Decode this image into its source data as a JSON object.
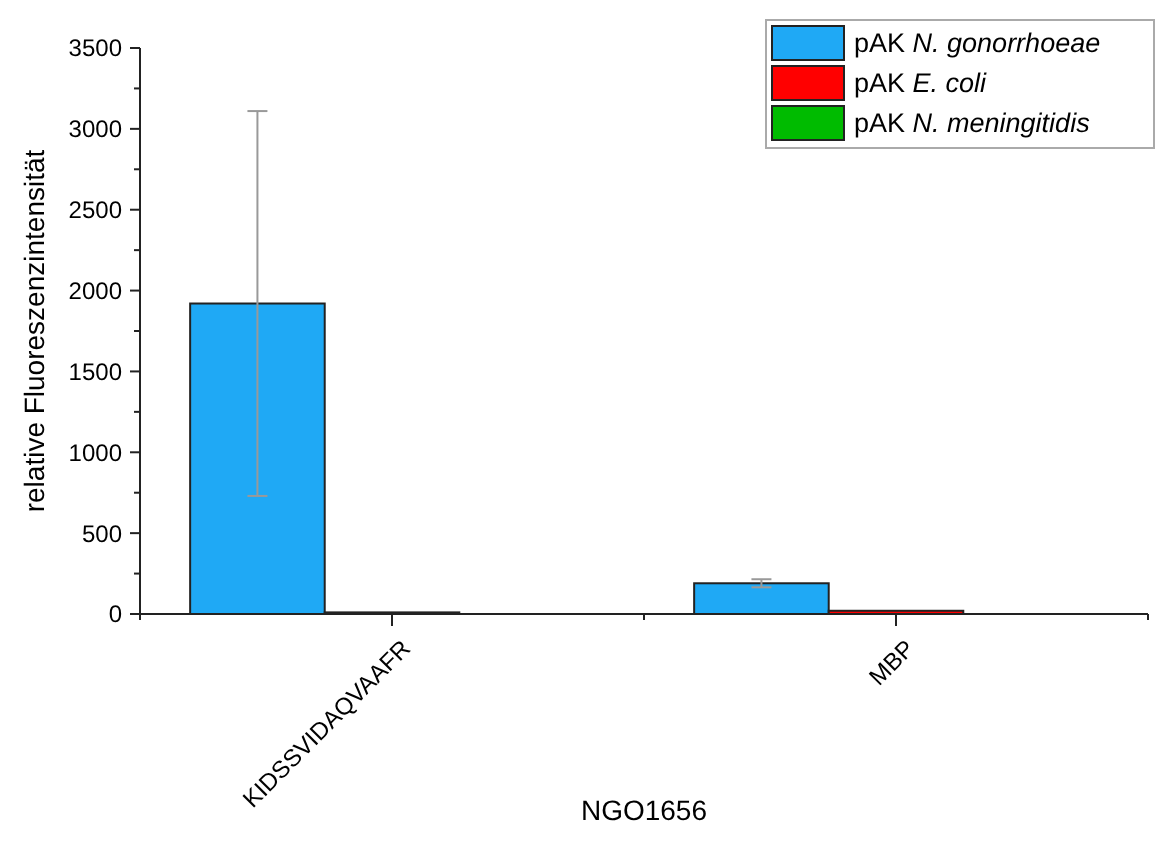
{
  "chart_data": {
    "type": "bar",
    "xlabel": "NGO1656",
    "ylabel": "relative Fluoreszenzintensität",
    "categories": [
      "KIDSSVIDAQVAAFR",
      "MBP"
    ],
    "series": [
      {
        "name": "pAK N. gonorrhoeae",
        "color": "#1fa9f5",
        "values": [
          1920,
          190
        ],
        "errors": [
          1190,
          25
        ]
      },
      {
        "name": "pAK E. coli",
        "color": "#ff0000",
        "values": [
          10,
          20
        ]
      },
      {
        "name": "pAK N. meningitidis",
        "color": "#00bb00",
        "values": [
          0,
          0
        ]
      }
    ],
    "ylim": [
      0,
      3500
    ],
    "yticks": [
      0,
      500,
      1000,
      1500,
      2000,
      2500,
      3000,
      3500
    ],
    "legend": "top right"
  }
}
